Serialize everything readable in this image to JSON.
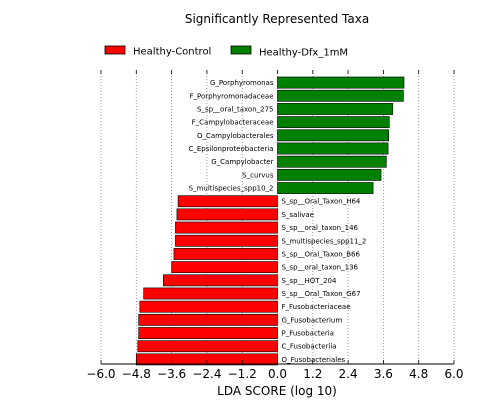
{
  "chart_data": {
    "type": "bar",
    "orientation": "horizontal",
    "title": "Significantly Represented Taxa",
    "xlabel": "LDA SCORE (log 10)",
    "ylabel": "",
    "xlim": [
      -6.0,
      6.0
    ],
    "xticks": [
      -6.0,
      -4.8,
      -3.6,
      -2.4,
      -1.2,
      0.0,
      1.2,
      2.4,
      3.6,
      4.8,
      6.0
    ],
    "xtick_labels": [
      "−6.0",
      "−4.8",
      "−3.6",
      "−2.4",
      "−1.2",
      "0.0",
      "1.2",
      "2.4",
      "3.6",
      "4.8",
      "6.0"
    ],
    "grid": "vertical dotted",
    "legend_position": "top",
    "series": [
      {
        "name": "Healthy-Control",
        "color": "#ff0000"
      },
      {
        "name": "Healthy-Dfx_1mM",
        "color": "#008000"
      }
    ],
    "bars": [
      {
        "label": "G_Porphyromonas",
        "value": 4.3,
        "series": 1
      },
      {
        "label": "F_Porphyromonadaceae",
        "value": 4.28,
        "series": 1
      },
      {
        "label": "S_sp__oral_taxon_275",
        "value": 3.92,
        "series": 1
      },
      {
        "label": "F_Campylobacteraceae",
        "value": 3.8,
        "series": 1
      },
      {
        "label": "O_Campylobacterales",
        "value": 3.78,
        "series": 1
      },
      {
        "label": "C_Epsilonproteobacteria",
        "value": 3.76,
        "series": 1
      },
      {
        "label": "G_Campylobacter",
        "value": 3.7,
        "series": 1
      },
      {
        "label": "S_curvus",
        "value": 3.52,
        "series": 1
      },
      {
        "label": "S_multispecies_spp10_2",
        "value": 3.25,
        "series": 1
      },
      {
        "label": "S_sp__Oral_Taxon_H64",
        "value": -3.38,
        "series": 0
      },
      {
        "label": "S_salivae",
        "value": -3.42,
        "series": 0
      },
      {
        "label": "S_sp__oral_taxon_146",
        "value": -3.47,
        "series": 0
      },
      {
        "label": "S_multispecies_spp11_2",
        "value": -3.47,
        "series": 0
      },
      {
        "label": "S_sp__Oral_Taxon_B66",
        "value": -3.52,
        "series": 0
      },
      {
        "label": "S_sp__oral_taxon_136",
        "value": -3.6,
        "series": 0
      },
      {
        "label": "S_sp__HOT_204",
        "value": -3.88,
        "series": 0
      },
      {
        "label": "S_sp__Oral_Taxon_G67",
        "value": -4.55,
        "series": 0
      },
      {
        "label": "F_Fusobacteriaceae",
        "value": -4.68,
        "series": 0
      },
      {
        "label": "G_Fusobacterium",
        "value": -4.72,
        "series": 0
      },
      {
        "label": "P_Fusobacteria",
        "value": -4.72,
        "series": 0
      },
      {
        "label": "C_Fusobacteriia",
        "value": -4.75,
        "series": 0
      },
      {
        "label": "O_Fusobacteriales",
        "value": -4.8,
        "series": 0
      }
    ]
  }
}
